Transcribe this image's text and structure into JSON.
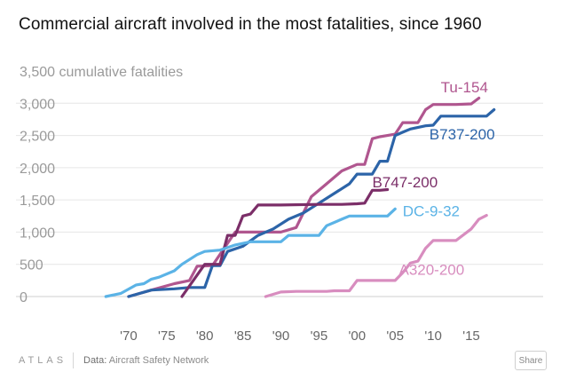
{
  "title": "Commercial aircraft involved in the most fatalities, since 1960",
  "footer": {
    "brand": "ATLAS",
    "source_label": "Data:",
    "source": "Aircraft Safety Network",
    "share_label": "Share"
  },
  "chart_data": {
    "type": "line",
    "title": "Commercial aircraft involved in the most fatalities, since 1960",
    "ylabel": "cumulative fatalities",
    "y_axis_top_label": "3,500 cumulative fatalities",
    "ylim": [
      0,
      3500
    ],
    "xlim": [
      1960,
      2020
    ],
    "y_ticks": [
      {
        "value": 0,
        "label": "0"
      },
      {
        "value": 500,
        "label": "500"
      },
      {
        "value": 1000,
        "label": "1,000"
      },
      {
        "value": 1500,
        "label": "1,500"
      },
      {
        "value": 2000,
        "label": "2,000"
      },
      {
        "value": 2500,
        "label": "2,500"
      },
      {
        "value": 3000,
        "label": "3,000"
      }
    ],
    "x_ticks": [
      {
        "value": 1970,
        "label": "'70"
      },
      {
        "value": 1975,
        "label": "'75"
      },
      {
        "value": 1980,
        "label": "'80"
      },
      {
        "value": 1985,
        "label": "'85"
      },
      {
        "value": 1990,
        "label": "'90"
      },
      {
        "value": 1995,
        "label": "'95"
      },
      {
        "value": 2000,
        "label": "'00"
      },
      {
        "value": 2005,
        "label": "'05"
      },
      {
        "value": 2010,
        "label": "'10"
      },
      {
        "value": 2015,
        "label": "'15"
      }
    ],
    "grid": "horizontal",
    "series": [
      {
        "name": "Tu-154",
        "label": "Tu-154",
        "color": "#b0568f",
        "label_value": [
          2011,
          3250
        ],
        "points": [
          [
            1970,
            0
          ],
          [
            1973,
            100
          ],
          [
            1976,
            200
          ],
          [
            1978,
            250
          ],
          [
            1979,
            470
          ],
          [
            1981,
            480
          ],
          [
            1984,
            1000
          ],
          [
            1988,
            1000
          ],
          [
            1990,
            1000
          ],
          [
            1992,
            1070
          ],
          [
            1994,
            1550
          ],
          [
            1996,
            1750
          ],
          [
            1998,
            1950
          ],
          [
            2000,
            2050
          ],
          [
            2001,
            2050
          ],
          [
            2002,
            2450
          ],
          [
            2003,
            2480
          ],
          [
            2004,
            2500
          ],
          [
            2005,
            2520
          ],
          [
            2006,
            2700
          ],
          [
            2008,
            2700
          ],
          [
            2009,
            2900
          ],
          [
            2010,
            2980
          ],
          [
            2011,
            2980
          ],
          [
            2013,
            2980
          ],
          [
            2015,
            2990
          ],
          [
            2016,
            3080
          ]
        ]
      },
      {
        "name": "B737-200",
        "label": "B737-200",
        "color": "#2c64a8",
        "label_value": [
          2009.5,
          2520
        ],
        "points": [
          [
            1970,
            0
          ],
          [
            1973,
            100
          ],
          [
            1976,
            120
          ],
          [
            1978,
            140
          ],
          [
            1980,
            140
          ],
          [
            1981,
            480
          ],
          [
            1982,
            480
          ],
          [
            1983,
            700
          ],
          [
            1985,
            780
          ],
          [
            1987,
            950
          ],
          [
            1989,
            1050
          ],
          [
            1991,
            1200
          ],
          [
            1993,
            1300
          ],
          [
            1995,
            1450
          ],
          [
            1997,
            1600
          ],
          [
            1999,
            1750
          ],
          [
            2000,
            1900
          ],
          [
            2002,
            1900
          ],
          [
            2003,
            2100
          ],
          [
            2004,
            2100
          ],
          [
            2005,
            2500
          ],
          [
            2006,
            2550
          ],
          [
            2007,
            2600
          ],
          [
            2009,
            2650
          ],
          [
            2010,
            2660
          ],
          [
            2011,
            2800
          ],
          [
            2013,
            2800
          ],
          [
            2015,
            2800
          ],
          [
            2016,
            2800
          ],
          [
            2017,
            2800
          ],
          [
            2018,
            2900
          ]
        ]
      },
      {
        "name": "B747-200",
        "label": "B747-200",
        "color": "#7b2e68",
        "label_value": [
          2002,
          1780
        ],
        "points": [
          [
            1977,
            0
          ],
          [
            1980,
            500
          ],
          [
            1982,
            500
          ],
          [
            1983,
            950
          ],
          [
            1984,
            950
          ],
          [
            1985,
            1250
          ],
          [
            1986,
            1280
          ],
          [
            1987,
            1420
          ],
          [
            1990,
            1420
          ],
          [
            1995,
            1430
          ],
          [
            1998,
            1430
          ],
          [
            2000,
            1440
          ],
          [
            2001,
            1450
          ],
          [
            2002,
            1650
          ],
          [
            2003,
            1650
          ],
          [
            2004,
            1660
          ]
        ]
      },
      {
        "name": "DC-9-32",
        "label": "DC-9-32",
        "color": "#5bb3e6",
        "label_value": [
          2006,
          1330
        ],
        "points": [
          [
            1967,
            0
          ],
          [
            1969,
            50
          ],
          [
            1971,
            180
          ],
          [
            1972,
            200
          ],
          [
            1973,
            270
          ],
          [
            1974,
            300
          ],
          [
            1976,
            400
          ],
          [
            1977,
            500
          ],
          [
            1979,
            650
          ],
          [
            1980,
            700
          ],
          [
            1982,
            720
          ],
          [
            1984,
            800
          ],
          [
            1986,
            850
          ],
          [
            1990,
            850
          ],
          [
            1991,
            950
          ],
          [
            1995,
            950
          ],
          [
            1996,
            1100
          ],
          [
            1998,
            1200
          ],
          [
            1999,
            1250
          ],
          [
            2001,
            1250
          ],
          [
            2004,
            1250
          ],
          [
            2005,
            1360
          ]
        ]
      },
      {
        "name": "A320-200",
        "label": "A320-200",
        "color": "#d88dbf",
        "label_value": [
          2005.5,
          420
        ],
        "points": [
          [
            1988,
            0
          ],
          [
            1990,
            70
          ],
          [
            1992,
            80
          ],
          [
            1996,
            80
          ],
          [
            1997,
            90
          ],
          [
            1999,
            90
          ],
          [
            2000,
            250
          ],
          [
            2003,
            250
          ],
          [
            2005,
            250
          ],
          [
            2006,
            370
          ],
          [
            2007,
            520
          ],
          [
            2008,
            550
          ],
          [
            2009,
            750
          ],
          [
            2010,
            870
          ],
          [
            2013,
            870
          ],
          [
            2015,
            1050
          ],
          [
            2016,
            1200
          ],
          [
            2017,
            1260
          ]
        ]
      }
    ]
  }
}
